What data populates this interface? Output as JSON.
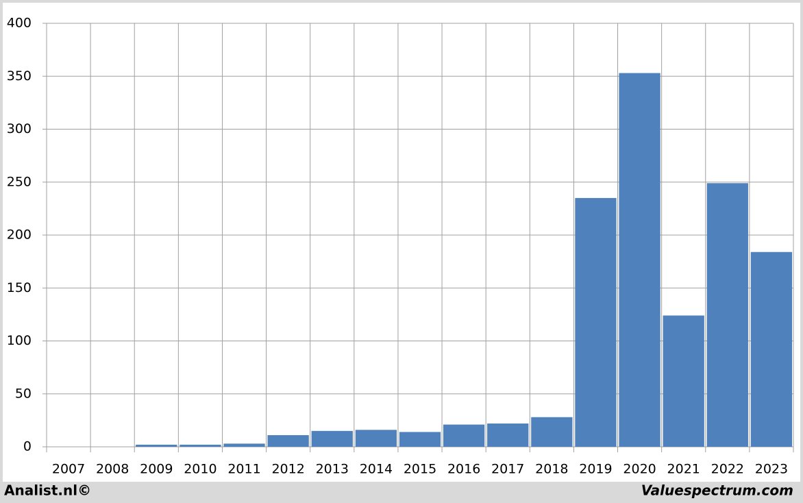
{
  "chart_data": {
    "type": "bar",
    "categories": [
      "2007",
      "2008",
      "2009",
      "2010",
      "2011",
      "2012",
      "2013",
      "2014",
      "2015",
      "2016",
      "2017",
      "2018",
      "2019",
      "2020",
      "2021",
      "2022",
      "2023"
    ],
    "values": [
      0,
      0,
      2,
      2,
      3,
      11,
      15,
      16,
      14,
      21,
      22,
      28,
      235,
      353,
      124,
      249,
      184
    ],
    "color": "#4f81bd",
    "ylim": [
      0,
      400
    ],
    "yticks": [
      0,
      50,
      100,
      150,
      200,
      250,
      300,
      350,
      400
    ],
    "grid": true,
    "footer_left": "Analist.nl©",
    "footer_right": "Valuespectrum.com"
  }
}
